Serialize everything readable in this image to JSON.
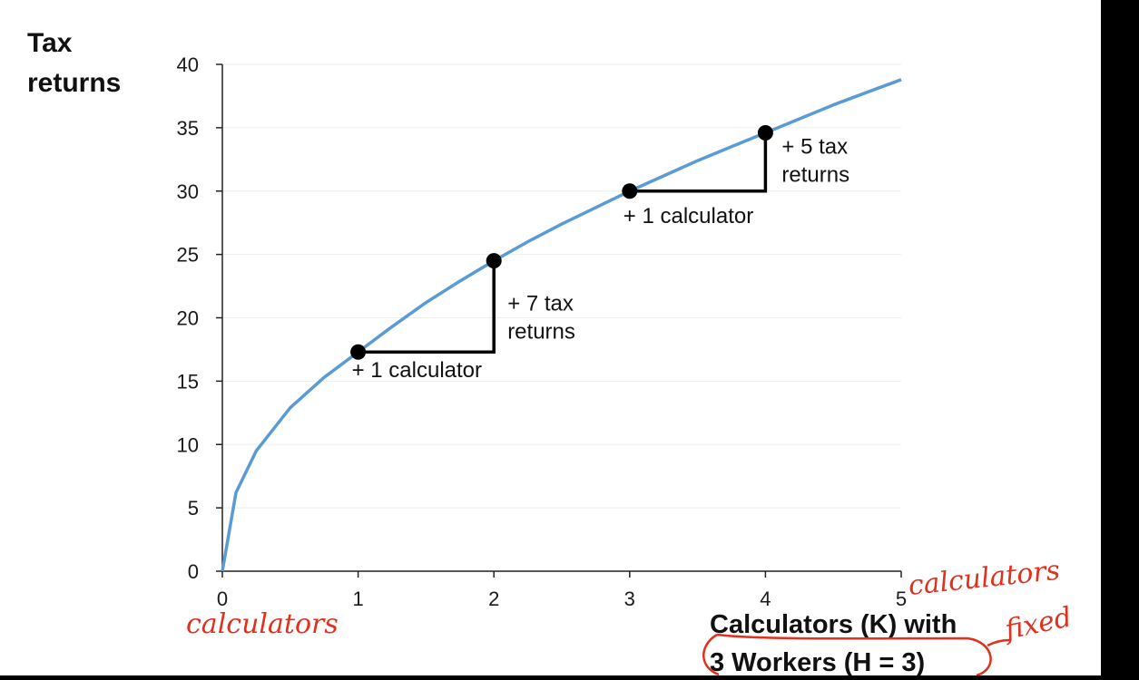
{
  "chart_data": {
    "type": "line",
    "ylabel_lines": [
      "Tax",
      "returns"
    ],
    "xlabel_lines": [
      "Calculators (K) with",
      "3 Workers (H = 3)"
    ],
    "xlim": [
      0,
      5
    ],
    "ylim": [
      0,
      40
    ],
    "xticks": [
      0,
      1,
      2,
      3,
      4,
      5
    ],
    "yticks": [
      0,
      5,
      10,
      15,
      20,
      25,
      30,
      35,
      40
    ],
    "grid": true,
    "series": [
      {
        "color": "#5b9bd5",
        "x": [
          0,
          0.1,
          0.25,
          0.5,
          0.75,
          1,
          1.25,
          1.5,
          1.75,
          2,
          2.25,
          2.5,
          2.75,
          3,
          3.25,
          3.5,
          3.75,
          4,
          4.25,
          4.5,
          4.75,
          5
        ],
        "y": [
          0,
          6.2,
          9.5,
          12.9,
          15.3,
          17.3,
          19.3,
          21.2,
          22.9,
          24.5,
          26.0,
          27.4,
          28.7,
          30.0,
          31.2,
          32.4,
          33.5,
          34.6,
          35.7,
          36.8,
          37.8,
          38.8
        ]
      }
    ],
    "highlight_points": [
      {
        "x": 1,
        "y": 17.3
      },
      {
        "x": 2,
        "y": 24.5
      },
      {
        "x": 3,
        "y": 30.0
      },
      {
        "x": 4,
        "y": 34.6
      }
    ],
    "annotations": [
      {
        "lines": [
          "+ 1 calculator"
        ]
      },
      {
        "lines": [
          "+ 7 tax",
          "returns"
        ]
      },
      {
        "lines": [
          "+ 1 calculator"
        ]
      },
      {
        "lines": [
          "+ 5 tax",
          "returns"
        ]
      }
    ]
  },
  "handwriting": {
    "under_origin": "calculators",
    "after_axis_end": "calculators",
    "next_to_label": "fixed",
    "ink_color": "#e0301e"
  }
}
